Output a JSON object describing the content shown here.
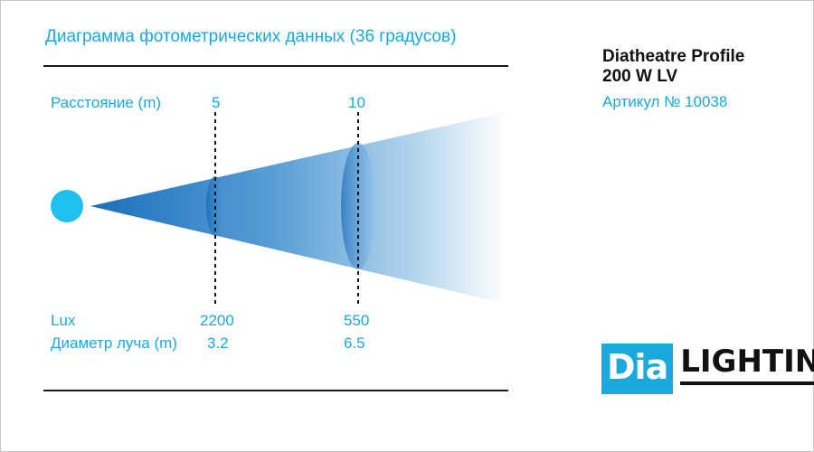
{
  "header": {
    "title": "Диаграмма фотометрических данных (36 градусов)"
  },
  "product": {
    "name_line1": "Diatheatre Profile",
    "name_line2": "200 W LV",
    "article": "Артикул № 10038"
  },
  "diagram": {
    "distance_label": "Расстояние (m)",
    "lux_label": "Lux",
    "diameter_label": "Диаметр луча (m)",
    "points": [
      {
        "distance": "5",
        "lux": "2200",
        "diameter": "3.2"
      },
      {
        "distance": "10",
        "lux": "550",
        "diameter": "6.5"
      }
    ],
    "colors": {
      "accent": "#1aa9dd",
      "beam_dark": "#1a6fba",
      "source": "#1ec0ee"
    }
  },
  "logo": {
    "part1": "Dia",
    "part2": "LIGHTING"
  }
}
